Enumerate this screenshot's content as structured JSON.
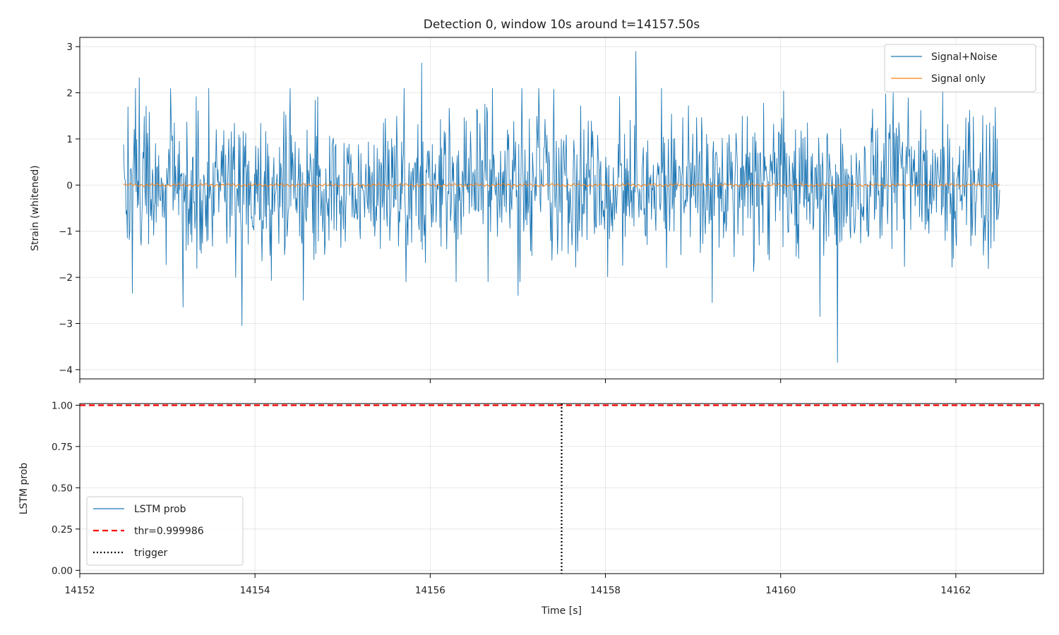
{
  "chart_data": [
    {
      "type": "line",
      "title": "Detection 0, window 10s around t=14157.50s",
      "xlabel": "",
      "ylabel": "Strain (whitened)",
      "xlim": [
        14152,
        14163
      ],
      "ylim": [
        -4.2,
        3.2
      ],
      "xticks": [
        14152,
        14154,
        14156,
        14158,
        14160,
        14162
      ],
      "show_xtick_labels": false,
      "yticks": [
        -4,
        -3,
        -2,
        -1,
        0,
        1,
        2,
        3
      ],
      "ytick_labels": [
        "−4",
        "−3",
        "−2",
        "−1",
        "0",
        "1",
        "2",
        "3"
      ],
      "grid": true,
      "legend_position": "upper right",
      "colors": {
        "signal_noise": "#1f77b4",
        "signal_only": "#ff7f0e"
      },
      "series": [
        {
          "name": "Signal+Noise",
          "color": "#1f77b4",
          "x_range": [
            14152.5,
            14162.5
          ],
          "summary": "whitened noise, approx. unit variance",
          "extremes": [
            {
              "x": 14152.55,
              "y": -1.5
            },
            {
              "x": 14152.55,
              "y": 1.7
            },
            {
              "x": 14152.6,
              "y": -2.35
            },
            {
              "x": 14152.68,
              "y": 2.33
            },
            {
              "x": 14153.18,
              "y": -2.65
            },
            {
              "x": 14153.85,
              "y": -3.05
            },
            {
              "x": 14154.55,
              "y": -2.5
            },
            {
              "x": 14155.9,
              "y": 2.65
            },
            {
              "x": 14157.0,
              "y": -2.4
            },
            {
              "x": 14158.35,
              "y": 2.9
            },
            {
              "x": 14159.22,
              "y": -2.55
            },
            {
              "x": 14160.45,
              "y": -2.85
            },
            {
              "x": 14160.65,
              "y": -3.85
            },
            {
              "x": 14161.85,
              "y": 2.05
            },
            {
              "x": 14162.5,
              "y": -0.1
            }
          ]
        },
        {
          "name": "Signal only",
          "color": "#ff7f0e",
          "x_range": [
            14152.5,
            14162.5
          ],
          "summary": "near zero, amplitude about 0.03"
        }
      ]
    },
    {
      "type": "line",
      "title": "",
      "xlabel": "Time [s]",
      "ylabel": "LSTM prob",
      "xlim": [
        14152,
        14163
      ],
      "ylim": [
        -0.02,
        1.01
      ],
      "xticks": [
        14152,
        14154,
        14156,
        14158,
        14160,
        14162
      ],
      "yticks": [
        0.0,
        0.25,
        0.5,
        0.75,
        1.0
      ],
      "ytick_labels": [
        "0.00",
        "0.25",
        "0.50",
        "0.75",
        "1.00"
      ],
      "grid": true,
      "legend_position": "lower left",
      "series": [
        {
          "name": "LSTM prob",
          "color": "#1f77b4",
          "x": [],
          "y": []
        }
      ],
      "hlines": [
        {
          "name": "thr=0.999986",
          "y": 0.999986,
          "color": "#ff0000",
          "style": "dashed"
        }
      ],
      "vlines": [
        {
          "name": "trigger",
          "x": 14157.5,
          "color": "#000000",
          "style": "dotted"
        }
      ]
    }
  ]
}
